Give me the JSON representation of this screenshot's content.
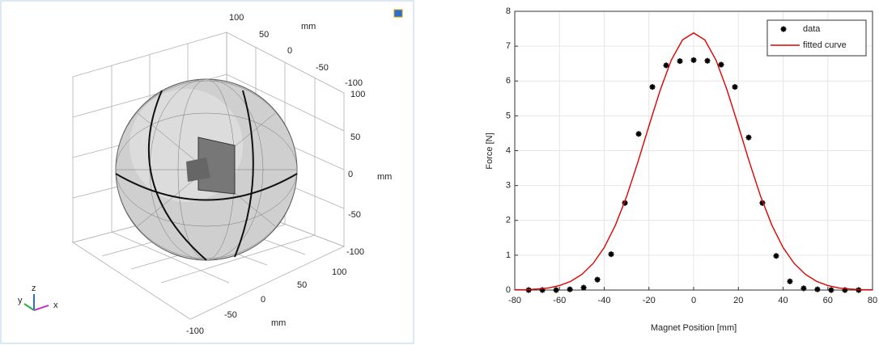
{
  "view3d": {
    "top_axis": {
      "ticks": [
        "100",
        "50",
        "0",
        "-50",
        "-100"
      ],
      "unit": "mm"
    },
    "right_axis": {
      "ticks": [
        "100",
        "50",
        "0",
        "-50",
        "-100"
      ],
      "unit": "mm"
    },
    "bottom_axis": {
      "ticks": [
        "100",
        "50",
        "0",
        "-50",
        "-100"
      ],
      "unit": "mm"
    },
    "triad": {
      "x": "x",
      "y": "y",
      "z": "z"
    }
  },
  "chart_data": {
    "type": "line",
    "xlabel": "Magnet Position [mm]",
    "ylabel": "Force [N]",
    "xlim": [
      -80,
      80
    ],
    "xticks": [
      -80,
      -60,
      -40,
      -20,
      0,
      20,
      40,
      60,
      80
    ],
    "ylim": [
      0,
      8
    ],
    "yticks": [
      0,
      1,
      2,
      3,
      4,
      5,
      6,
      7,
      8
    ],
    "grid": true,
    "legend": "top-right",
    "series": [
      {
        "name": "data",
        "color": "#000000",
        "style": "markers",
        "x": [
          -73.8,
          -67.65,
          -61.5,
          -55.35,
          -49.2,
          -43.05,
          -36.9,
          -30.75,
          -24.6,
          -18.45,
          -12.3,
          -6.15,
          0,
          6.15,
          12.3,
          18.45,
          24.6,
          30.75,
          36.9,
          43.05,
          49.2,
          55.35,
          61.5,
          67.65,
          73.8
        ],
        "values": [
          0,
          0,
          0,
          0.02,
          0.07,
          0.3,
          1.03,
          2.5,
          4.48,
          5.83,
          6.45,
          6.57,
          6.6,
          6.58,
          6.47,
          5.83,
          4.38,
          2.5,
          0.98,
          0.25,
          0.05,
          0.02,
          0,
          0,
          0
        ]
      },
      {
        "name": "fitted curve",
        "color": "#e00000",
        "style": "line",
        "x": [
          -80,
          -75,
          -70,
          -65,
          -60,
          -55,
          -50,
          -45,
          -40,
          -35,
          -30,
          -25,
          -20,
          -15,
          -10,
          -5,
          0,
          5,
          10,
          15,
          20,
          25,
          30,
          35,
          40,
          45,
          50,
          55,
          60,
          65,
          70,
          75,
          80
        ],
        "values": [
          0.01,
          0.01,
          0.03,
          0.06,
          0.13,
          0.25,
          0.45,
          0.76,
          1.22,
          1.86,
          2.68,
          3.66,
          4.71,
          5.73,
          6.6,
          7.18,
          7.38,
          7.18,
          6.6,
          5.73,
          4.71,
          3.66,
          2.68,
          1.86,
          1.22,
          0.76,
          0.45,
          0.25,
          0.13,
          0.06,
          0.03,
          0.01,
          0.01
        ]
      }
    ]
  }
}
